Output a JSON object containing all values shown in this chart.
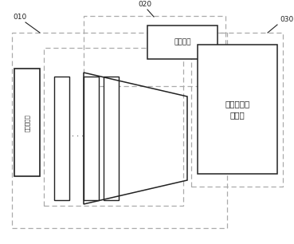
{
  "bg_color": "#ffffff",
  "gray": "#aaaaaa",
  "dark": "#555555",
  "black": "#222222",
  "label_010": "010",
  "label_020": "020",
  "label_030": "030",
  "text_sensor": "层叠器装置",
  "text_connect": "连接装置",
  "text_info": "信息处理控\n制装置",
  "dots": "· · ·",
  "fig_width": 3.69,
  "fig_height": 3.06,
  "dpi": 100
}
